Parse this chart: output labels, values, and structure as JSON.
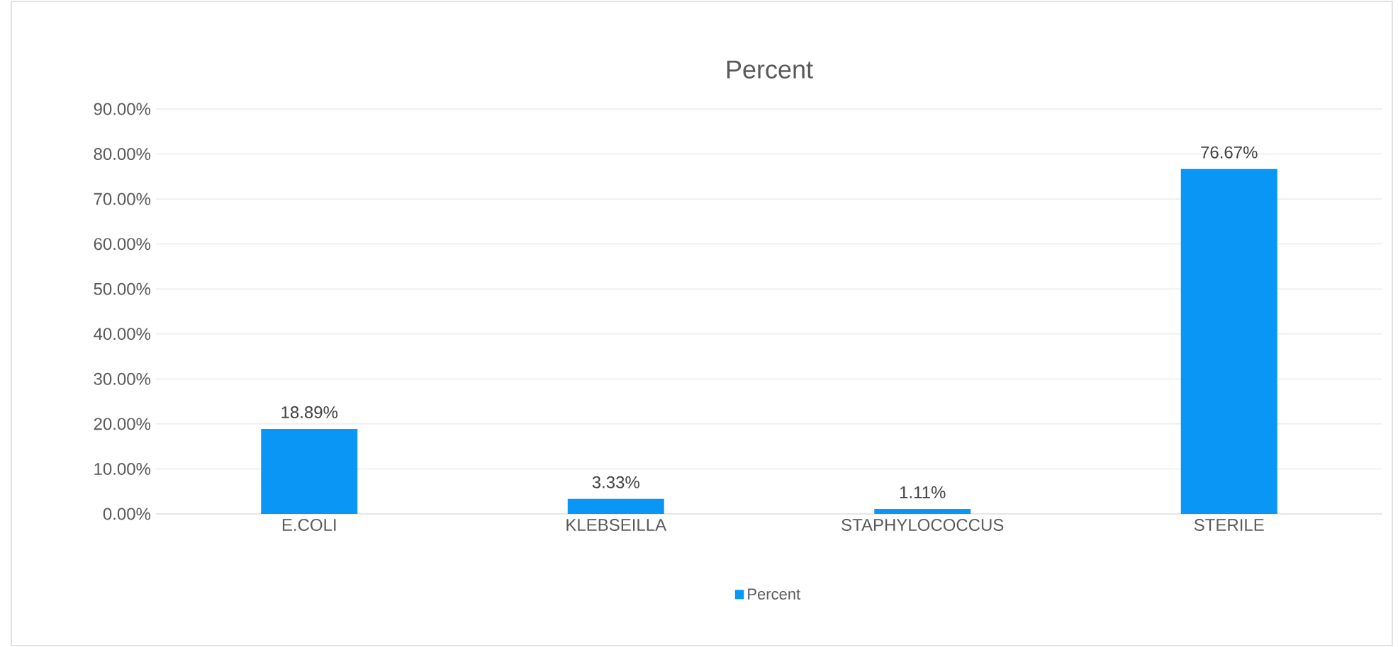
{
  "chart_data": {
    "type": "bar",
    "title": "Percent",
    "categories": [
      "E.COLI",
      "KLEBSEILLA",
      "STAPHYLOCOCCUS",
      "STERILE"
    ],
    "series": [
      {
        "name": "Percent",
        "color": "#0a96f5",
        "values": [
          18.89,
          3.33,
          1.11,
          76.67
        ],
        "value_labels": [
          "18.89%",
          "3.33%",
          "1.11%",
          "76.67%"
        ]
      }
    ],
    "ylim": [
      0,
      90
    ],
    "yticks": [
      {
        "value": 0,
        "label": "0.00%"
      },
      {
        "value": 10,
        "label": "10.00%"
      },
      {
        "value": 20,
        "label": "20.00%"
      },
      {
        "value": 30,
        "label": "30.00%"
      },
      {
        "value": 40,
        "label": "40.00%"
      },
      {
        "value": 50,
        "label": "50.00%"
      },
      {
        "value": 60,
        "label": "60.00%"
      },
      {
        "value": 70,
        "label": "70.00%"
      },
      {
        "value": 80,
        "label": "80.00%"
      },
      {
        "value": 90,
        "label": "90.00%"
      }
    ],
    "grid": "y",
    "legend": "bottom"
  }
}
